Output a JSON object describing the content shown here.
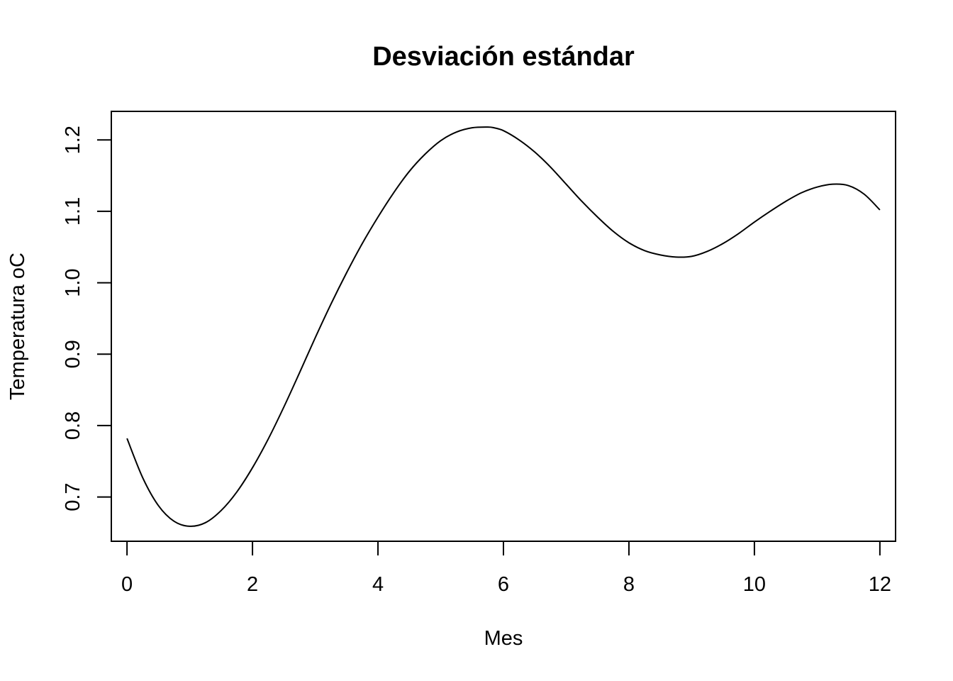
{
  "chart_data": {
    "type": "line",
    "title": "Desviación estándar",
    "xlabel": "Mes",
    "ylabel": "Temperatura oC",
    "xlim": [
      -0.25,
      12.25
    ],
    "ylim": [
      0.638,
      1.24
    ],
    "xticks": [
      0,
      2,
      4,
      6,
      8,
      10,
      12
    ],
    "yticks": [
      0.7,
      0.8,
      0.9,
      1.0,
      1.1,
      1.2
    ],
    "ytick_labels": [
      "0.7",
      "0.8",
      "0.9",
      "1.0",
      "1.1",
      "1.2"
    ],
    "grid": false,
    "series": [
      {
        "color": "#000000",
        "x": [
          0,
          0.25,
          0.5,
          0.75,
          1,
          1.25,
          1.5,
          1.75,
          2,
          2.25,
          2.5,
          2.75,
          3,
          3.25,
          3.5,
          3.75,
          4,
          4.25,
          4.5,
          4.75,
          5,
          5.25,
          5.5,
          5.75,
          5.85,
          6,
          6.25,
          6.5,
          6.75,
          7,
          7.25,
          7.5,
          7.75,
          8,
          8.25,
          8.5,
          8.75,
          9,
          9.25,
          9.5,
          9.75,
          10,
          10.25,
          10.5,
          10.75,
          11,
          11.25,
          11.5,
          11.75,
          12
        ],
        "y": [
          0.782,
          0.727,
          0.688,
          0.666,
          0.659,
          0.664,
          0.681,
          0.707,
          0.741,
          0.781,
          0.826,
          0.874,
          0.923,
          0.97,
          1.014,
          1.055,
          1.092,
          1.126,
          1.156,
          1.18,
          1.199,
          1.211,
          1.217,
          1.218,
          1.217,
          1.213,
          1.2,
          1.183,
          1.162,
          1.138,
          1.114,
          1.092,
          1.072,
          1.056,
          1.045,
          1.039,
          1.036,
          1.037,
          1.044,
          1.055,
          1.069,
          1.085,
          1.1,
          1.114,
          1.126,
          1.134,
          1.138,
          1.136,
          1.124,
          1.102
        ]
      }
    ]
  }
}
